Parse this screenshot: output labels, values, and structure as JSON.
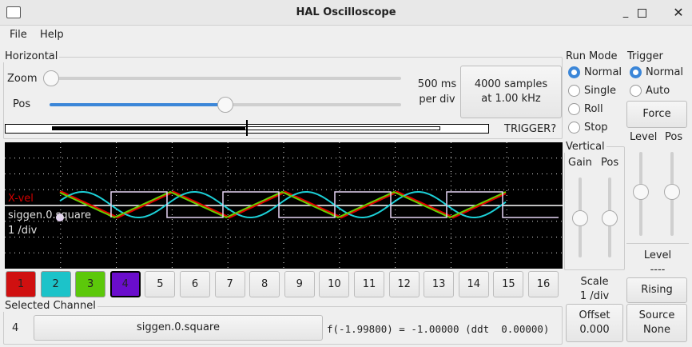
{
  "window": {
    "title": "HAL Oscilloscope"
  },
  "menu": [
    "File",
    "Help"
  ],
  "horizontal": {
    "label": "Horizontal",
    "zoom_label": "Zoom",
    "pos_label": "Pos",
    "zoom_value": 0,
    "pos_value": 0.5,
    "rate_line1": "500 ms",
    "rate_line2": "per div",
    "samples_line1": "4000 samples",
    "samples_line2": "at 1.00 kHz",
    "trigger_status": "TRIGGER?"
  },
  "run_mode": {
    "label": "Run Mode",
    "options": [
      "Normal",
      "Single",
      "Roll",
      "Stop"
    ],
    "selected": "Normal"
  },
  "trigger": {
    "label": "Trigger",
    "options": [
      "Normal",
      "Auto"
    ],
    "selected": "Normal",
    "force": "Force",
    "level_label": "Level",
    "pos_label": "Pos",
    "level_title": "Level",
    "level_value": "----",
    "edge": "Rising",
    "source_line1": "Source",
    "source_line2": "None"
  },
  "vertical": {
    "label": "Vertical",
    "gain_label": "Gain",
    "pos_label": "Pos",
    "scale_line1": "Scale",
    "scale_line2": "1 /div",
    "offset_line1": "Offset",
    "offset_line2": "0.000"
  },
  "scope": {
    "labels": [
      {
        "text": "X-vel",
        "color": "#d00000"
      },
      {
        "text": "siggen.0.square",
        "color": "#e0e0e0"
      },
      {
        "text": "1 /div",
        "color": "#e0e0e0"
      }
    ],
    "traces": [
      {
        "channel": 1,
        "color": "#e00000"
      },
      {
        "channel": 2,
        "color": "#1ccfd6"
      },
      {
        "channel": 3,
        "color": "#66cc00"
      },
      {
        "channel": 4,
        "color": "#e6d4f4"
      }
    ]
  },
  "channels": [
    {
      "n": "1",
      "color": "#d01010"
    },
    {
      "n": "2",
      "color": "#1cc3c9"
    },
    {
      "n": "3",
      "color": "#5cc80a"
    },
    {
      "n": "4",
      "color": "#6a0dcc"
    },
    {
      "n": "5"
    },
    {
      "n": "6"
    },
    {
      "n": "7"
    },
    {
      "n": "8"
    },
    {
      "n": "9"
    },
    {
      "n": "10"
    },
    {
      "n": "11"
    },
    {
      "n": "12"
    },
    {
      "n": "13"
    },
    {
      "n": "14"
    },
    {
      "n": "15"
    },
    {
      "n": "16"
    }
  ],
  "selected_channel": {
    "label": "Selected Channel",
    "number": "4",
    "name": "siggen.0.square",
    "readout": "f(-1.99800) = -1.00000 (ddt  0.00000)"
  }
}
